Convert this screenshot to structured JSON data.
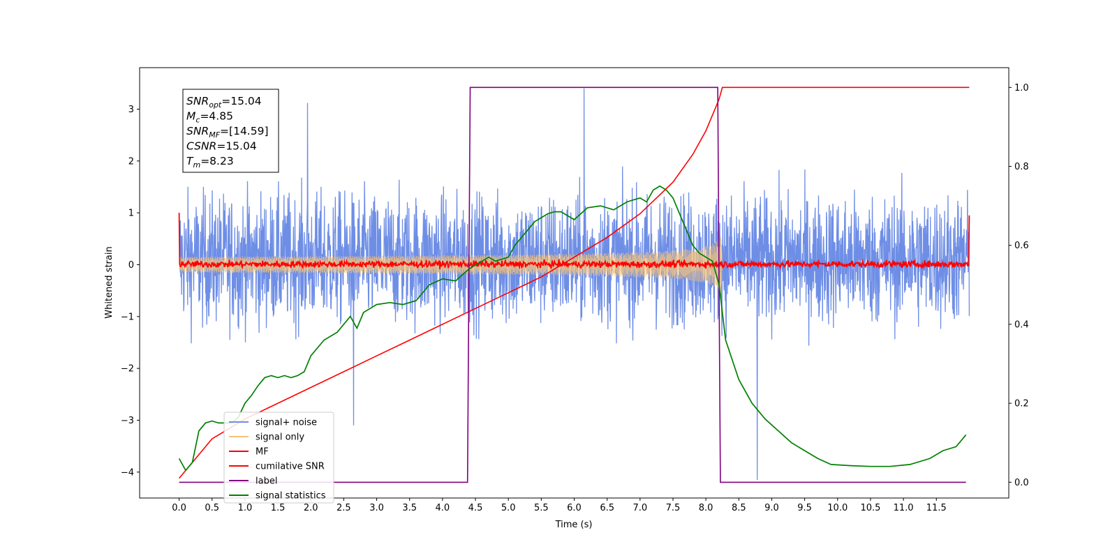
{
  "chart_data": {
    "type": "line",
    "xlabel": "Time (s)",
    "ylabel": "Whitened strain",
    "xlim": [
      -0.6,
      12.6
    ],
    "ylim_left": [
      -4.5,
      3.8
    ],
    "ylim_right": [
      -0.04,
      1.05
    ],
    "x_ticks": [
      "0.0",
      "0.5",
      "1.0",
      "1.5",
      "2.0",
      "2.5",
      "3.0",
      "3.5",
      "4.0",
      "4.5",
      "5.0",
      "5.5",
      "6.0",
      "6.5",
      "7.0",
      "7.5",
      "8.0",
      "8.5",
      "9.0",
      "9.5",
      "10.0",
      "10.5",
      "11.0",
      "11.5"
    ],
    "y_ticks_left": [
      "3",
      "2",
      "1",
      "0",
      "−1",
      "−2",
      "−3",
      "−4"
    ],
    "y_ticks_right": [
      "1.0",
      "0.8",
      "0.6",
      "0.4",
      "0.2",
      "0.0"
    ],
    "grid": false,
    "legend_position": "lower-left",
    "stats_box": [
      {
        "name": "SNR",
        "sub": "opt",
        "value": "=15.04"
      },
      {
        "name": "M",
        "sub": "c",
        "value": "=4.85"
      },
      {
        "name": "SNR",
        "sub": "MF",
        "value": "=[14.59]"
      },
      {
        "name": "CSNR",
        "sub": "",
        "value": "=15.04"
      },
      {
        "name": "T",
        "sub": "m",
        "value": "=8.23"
      }
    ],
    "series": [
      {
        "name": "signal+ noise",
        "color": "#6e8ee6",
        "axis": "left",
        "style": "noise",
        "x_range": [
          0.0,
          12.0
        ],
        "envelope": [
          -2.0,
          2.2
        ],
        "spikes": [
          [
            6.15,
            3.4
          ],
          [
            8.78,
            -4.15
          ],
          [
            2.65,
            -3.1
          ],
          [
            1.95,
            3.12
          ]
        ]
      },
      {
        "name": "signal only",
        "color": "#f5c27a",
        "axis": "left",
        "style": "chirp",
        "x_range": [
          0.0,
          8.25
        ],
        "peak_amplitude": 0.7
      },
      {
        "name": "MF",
        "color": "#ff0000",
        "axis": "left",
        "style": "noise",
        "x_range": [
          0.0,
          12.0
        ],
        "envelope": [
          -0.1,
          0.12
        ]
      },
      {
        "name": "cumilative SNR",
        "color": "#ff0000",
        "axis": "right",
        "x": [
          0.0,
          0.5,
          1.0,
          1.5,
          2.0,
          2.5,
          3.0,
          3.5,
          4.0,
          4.5,
          5.0,
          5.5,
          6.0,
          6.5,
          7.0,
          7.5,
          7.8,
          8.0,
          8.1,
          8.2,
          8.25,
          12.0
        ],
        "y": [
          0.01,
          0.11,
          0.16,
          0.2,
          0.24,
          0.28,
          0.32,
          0.36,
          0.4,
          0.44,
          0.48,
          0.52,
          0.57,
          0.62,
          0.68,
          0.76,
          0.83,
          0.89,
          0.93,
          0.97,
          1.0,
          1.0
        ]
      },
      {
        "name": "label",
        "color": "#800080",
        "axis": "right",
        "x": [
          0.0,
          4.38,
          4.42,
          8.18,
          8.22,
          11.95
        ],
        "y": [
          0.0,
          0.0,
          1.0,
          1.0,
          0.0,
          0.0
        ]
      },
      {
        "name": "signal statistics",
        "color": "#008000",
        "axis": "right",
        "x": [
          0.0,
          0.1,
          0.2,
          0.3,
          0.4,
          0.5,
          0.6,
          0.7,
          0.8,
          0.9,
          1.0,
          1.1,
          1.2,
          1.3,
          1.4,
          1.5,
          1.6,
          1.7,
          1.8,
          1.9,
          2.0,
          2.2,
          2.4,
          2.6,
          2.7,
          2.8,
          2.9,
          3.0,
          3.2,
          3.4,
          3.6,
          3.8,
          4.0,
          4.2,
          4.4,
          4.5,
          4.6,
          4.7,
          4.8,
          5.0,
          5.1,
          5.2,
          5.3,
          5.4,
          5.5,
          5.6,
          5.7,
          5.8,
          6.0,
          6.2,
          6.4,
          6.6,
          6.8,
          6.9,
          7.0,
          7.1,
          7.2,
          7.3,
          7.4,
          7.5,
          7.6,
          7.7,
          7.8,
          7.9,
          8.0,
          8.1,
          8.2,
          8.3,
          8.5,
          8.7,
          8.9,
          9.1,
          9.3,
          9.5,
          9.7,
          9.9,
          10.2,
          10.5,
          10.8,
          11.1,
          11.4,
          11.6,
          11.8,
          11.95
        ],
        "y": [
          0.06,
          0.03,
          0.05,
          0.13,
          0.15,
          0.155,
          0.15,
          0.15,
          0.15,
          0.165,
          0.2,
          0.22,
          0.245,
          0.265,
          0.27,
          0.265,
          0.27,
          0.265,
          0.27,
          0.28,
          0.32,
          0.36,
          0.38,
          0.42,
          0.39,
          0.43,
          0.44,
          0.45,
          0.455,
          0.45,
          0.46,
          0.5,
          0.515,
          0.51,
          0.54,
          0.55,
          0.56,
          0.57,
          0.56,
          0.57,
          0.6,
          0.62,
          0.64,
          0.66,
          0.67,
          0.68,
          0.685,
          0.685,
          0.665,
          0.695,
          0.7,
          0.69,
          0.71,
          0.715,
          0.72,
          0.71,
          0.74,
          0.75,
          0.74,
          0.72,
          0.68,
          0.64,
          0.6,
          0.58,
          0.57,
          0.56,
          0.5,
          0.36,
          0.26,
          0.2,
          0.16,
          0.13,
          0.1,
          0.08,
          0.06,
          0.045,
          0.042,
          0.04,
          0.04,
          0.045,
          0.06,
          0.08,
          0.09,
          0.12
        ]
      }
    ]
  }
}
